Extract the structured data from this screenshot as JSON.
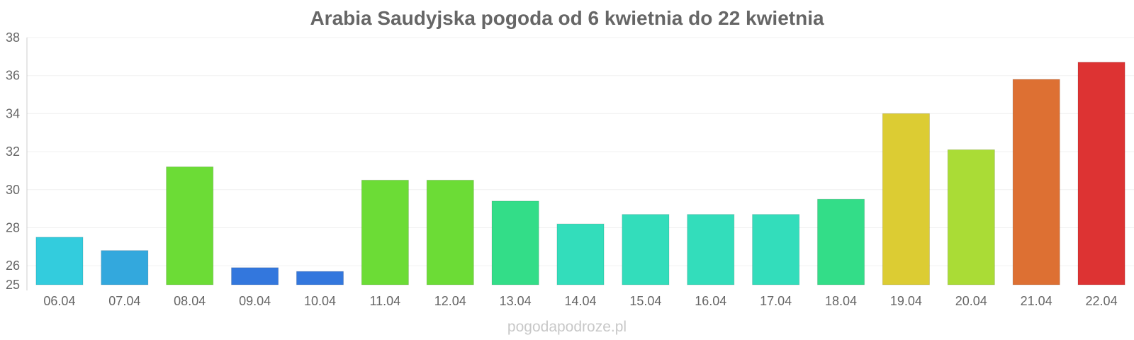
{
  "title": "Arabia Saudyjska pogoda od 6 kwietnia do 22 kwietnia",
  "watermark": "pogodapodroze.pl",
  "chart_data": {
    "type": "bar",
    "title": "Arabia Saudyjska pogoda od 6 kwietnia do 22 kwietnia",
    "xlabel": "",
    "ylabel": "",
    "ylim": [
      25,
      38
    ],
    "yticks": [
      25,
      26,
      28,
      30,
      32,
      34,
      36,
      38
    ],
    "grid": true,
    "legend": "none",
    "categories": [
      "06.04",
      "07.04",
      "08.04",
      "09.04",
      "10.04",
      "11.04",
      "12.04",
      "13.04",
      "14.04",
      "15.04",
      "16.04",
      "17.04",
      "18.04",
      "19.04",
      "20.04",
      "21.04",
      "22.04"
    ],
    "values": [
      27.5,
      26.8,
      31.2,
      25.9,
      25.7,
      30.5,
      30.5,
      29.4,
      28.2,
      28.7,
      28.7,
      28.7,
      29.5,
      34.0,
      32.1,
      35.8,
      36.7
    ],
    "colors": [
      "#33ccdd",
      "#33a8dd",
      "#6cdc36",
      "#3377dd",
      "#3377dd",
      "#6cdc36",
      "#6cdc36",
      "#33dd88",
      "#33ddbb",
      "#33ddbb",
      "#33ddbb",
      "#33ddbb",
      "#33dd88",
      "#dccc33",
      "#aadc36",
      "#dd7033",
      "#dd3333"
    ]
  }
}
